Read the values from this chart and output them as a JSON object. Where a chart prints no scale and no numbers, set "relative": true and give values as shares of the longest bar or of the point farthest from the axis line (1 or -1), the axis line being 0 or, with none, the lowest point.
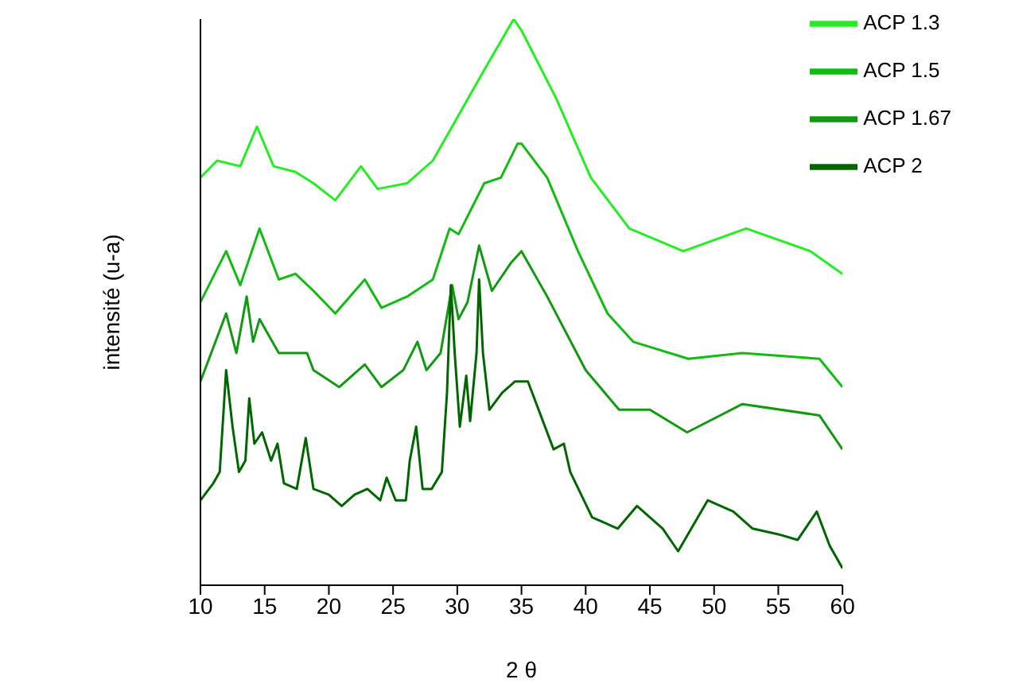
{
  "chart_data": {
    "type": "line",
    "xlabel": "2 θ",
    "ylabel": "intensité (u-a)",
    "relative": true,
    "xlim": [
      10,
      60
    ],
    "xticks": [
      10,
      15,
      20,
      25,
      30,
      35,
      40,
      45,
      50,
      55,
      60
    ],
    "legend": "top right",
    "marker": "none",
    "grid": false,
    "series": [
      {
        "name": "ACP 1.3",
        "color": "#22ee22",
        "x": [
          10,
          11.3,
          13.1,
          14.4,
          15.7,
          17.4,
          18.8,
          20.5,
          22.5,
          23.8,
          26.1,
          28.1,
          30.1,
          32.1,
          34.4,
          35,
          37.7,
          40.4,
          43.4,
          47.6,
          52.5,
          57.5,
          60
        ],
        "values": [
          0.72,
          0.75,
          0.74,
          0.81,
          0.74,
          0.73,
          0.71,
          0.68,
          0.74,
          0.7,
          0.71,
          0.75,
          0.83,
          0.91,
          1.0,
          0.98,
          0.86,
          0.72,
          0.63,
          0.59,
          0.63,
          0.59,
          0.55
        ]
      },
      {
        "name": "ACP 1.5",
        "color": "#11bb11",
        "x": [
          10,
          12,
          13.1,
          14.6,
          16.1,
          17.4,
          18.8,
          20.5,
          22.8,
          24.1,
          26.1,
          28.1,
          29.4,
          30.1,
          32.1,
          33.4,
          34.7,
          35,
          37,
          39.4,
          41.7,
          43.7,
          48,
          52.2,
          58.2,
          60
        ],
        "values": [
          0.5,
          0.59,
          0.53,
          0.63,
          0.54,
          0.55,
          0.52,
          0.48,
          0.54,
          0.49,
          0.51,
          0.54,
          0.63,
          0.62,
          0.71,
          0.72,
          0.78,
          0.78,
          0.72,
          0.59,
          0.48,
          0.43,
          0.4,
          0.41,
          0.4,
          0.35
        ]
      },
      {
        "name": "ACP 1.67",
        "color": "#119911",
        "x": [
          10,
          12,
          12.8,
          13.6,
          14.1,
          14.6,
          16.1,
          18.3,
          18.8,
          20.8,
          22.8,
          24.1,
          25.8,
          26.9,
          27.6,
          28.7,
          29.6,
          30.1,
          30.8,
          31.7,
          32.7,
          34.2,
          35,
          37,
          40,
          42.6,
          45,
          47.9,
          52.2,
          58.2,
          60
        ],
        "values": [
          0.36,
          0.48,
          0.41,
          0.51,
          0.43,
          0.47,
          0.41,
          0.41,
          0.38,
          0.35,
          0.39,
          0.35,
          0.38,
          0.43,
          0.38,
          0.41,
          0.53,
          0.47,
          0.5,
          0.6,
          0.52,
          0.57,
          0.59,
          0.51,
          0.38,
          0.31,
          0.31,
          0.27,
          0.32,
          0.3,
          0.24
        ]
      },
      {
        "name": "ACP 2",
        "color": "#006600",
        "x": [
          10,
          11,
          11.5,
          12,
          12.5,
          13,
          13.5,
          13.8,
          14.2,
          14.8,
          15.5,
          16,
          16.5,
          17.5,
          18.2,
          18.8,
          20,
          21,
          22,
          23,
          24,
          24.5,
          25.2,
          26,
          26.3,
          26.8,
          27.3,
          28,
          28.8,
          29.2,
          29.5,
          29.8,
          30.2,
          30.7,
          31,
          31.5,
          31.7,
          32,
          32.5,
          33.5,
          34.5,
          35.5,
          36,
          37.5,
          38.3,
          38.8,
          40.5,
          42.5,
          44,
          46,
          47.2,
          49.5,
          51.5,
          53,
          55,
          56.5,
          58,
          59,
          60
        ],
        "values": [
          0.15,
          0.18,
          0.2,
          0.38,
          0.28,
          0.2,
          0.22,
          0.33,
          0.25,
          0.27,
          0.22,
          0.25,
          0.18,
          0.17,
          0.26,
          0.17,
          0.16,
          0.14,
          0.16,
          0.17,
          0.15,
          0.19,
          0.15,
          0.15,
          0.22,
          0.28,
          0.17,
          0.17,
          0.2,
          0.34,
          0.53,
          0.41,
          0.28,
          0.37,
          0.29,
          0.41,
          0.54,
          0.41,
          0.31,
          0.34,
          0.36,
          0.36,
          0.33,
          0.24,
          0.25,
          0.2,
          0.12,
          0.1,
          0.14,
          0.1,
          0.06,
          0.15,
          0.13,
          0.1,
          0.09,
          0.08,
          0.13,
          0.07,
          0.03
        ]
      }
    ]
  }
}
